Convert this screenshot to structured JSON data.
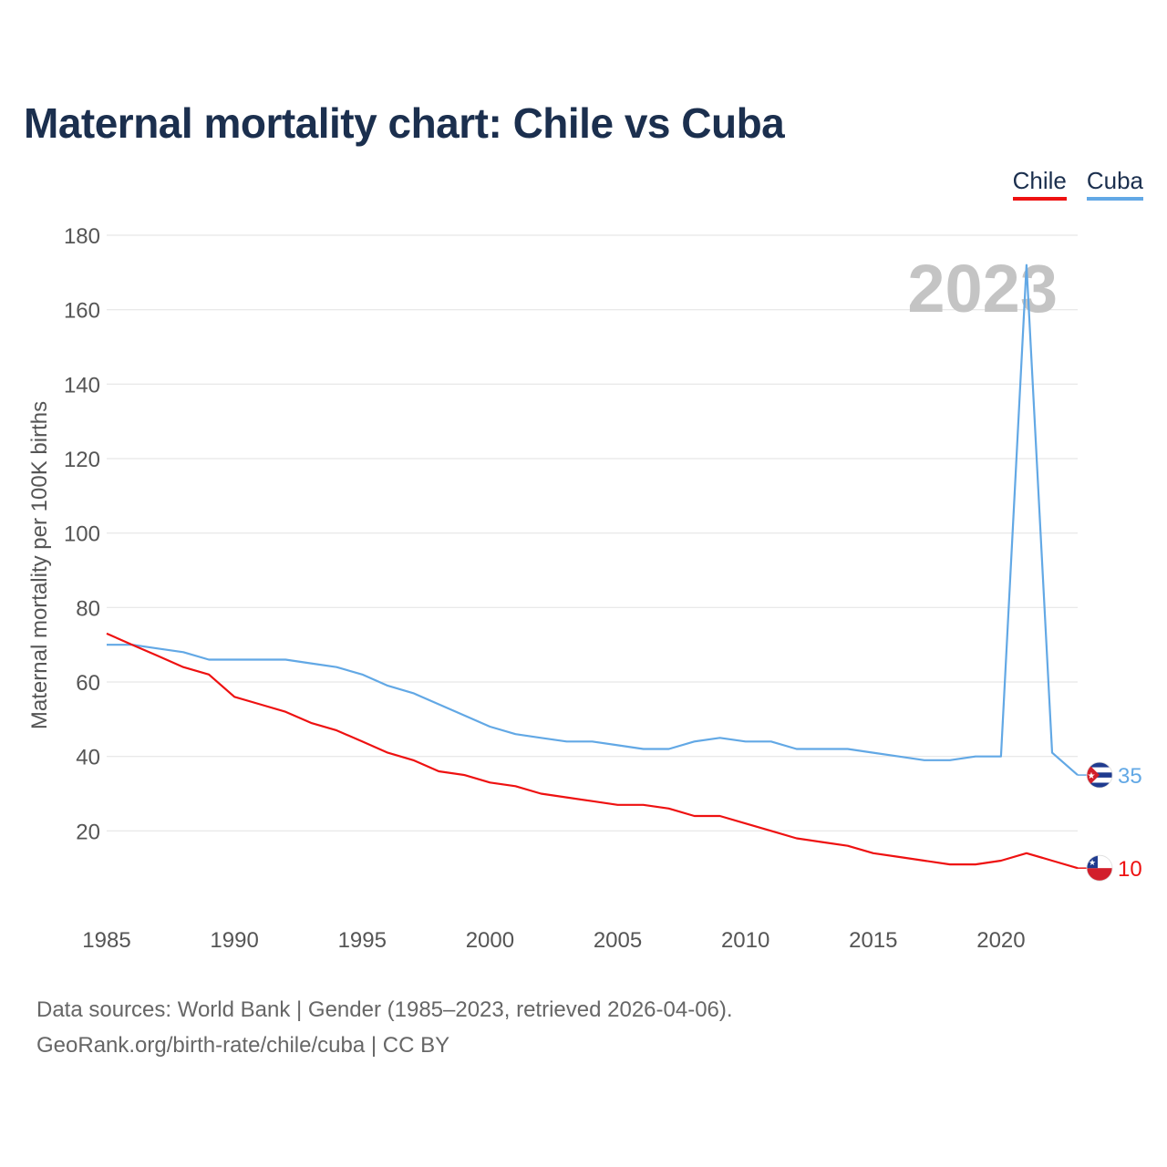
{
  "title": "Maternal mortality chart: Chile vs Cuba",
  "colors": {
    "chile": "#ee1111",
    "cuba": "#62a8e5",
    "grid": "#e6e6e6",
    "axis_text": "#555555",
    "year_watermark": "#c4c4c4"
  },
  "chart_data": {
    "type": "line",
    "title": "Maternal mortality chart: Chile vs Cuba",
    "ylabel": "Maternal mortality per 100K births",
    "xlabel": "",
    "xlim": [
      1985,
      2023
    ],
    "ylim": [
      0,
      180
    ],
    "x_ticks": [
      1985,
      1990,
      1995,
      2000,
      2005,
      2010,
      2015,
      2020
    ],
    "y_ticks": [
      20,
      40,
      60,
      80,
      100,
      120,
      140,
      160,
      180
    ],
    "watermark_year": "2023",
    "legend_position": "top-right",
    "x": [
      1985,
      1986,
      1987,
      1988,
      1989,
      1990,
      1991,
      1992,
      1993,
      1994,
      1995,
      1996,
      1997,
      1998,
      1999,
      2000,
      2001,
      2002,
      2003,
      2004,
      2005,
      2006,
      2007,
      2008,
      2009,
      2010,
      2011,
      2012,
      2013,
      2014,
      2015,
      2016,
      2017,
      2018,
      2019,
      2020,
      2021,
      2022,
      2023
    ],
    "series": [
      {
        "name": "Chile",
        "key": "chile",
        "end_label": "10",
        "values": [
          73,
          70,
          67,
          64,
          62,
          56,
          54,
          52,
          49,
          47,
          44,
          41,
          39,
          36,
          35,
          33,
          32,
          30,
          29,
          28,
          27,
          27,
          26,
          24,
          24,
          22,
          20,
          18,
          17,
          16,
          14,
          13,
          12,
          11,
          11,
          12,
          14,
          12,
          10
        ]
      },
      {
        "name": "Cuba",
        "key": "cuba",
        "end_label": "35",
        "values": [
          70,
          70,
          69,
          68,
          66,
          66,
          66,
          66,
          65,
          64,
          62,
          59,
          57,
          54,
          51,
          48,
          46,
          45,
          44,
          44,
          43,
          42,
          42,
          44,
          45,
          44,
          44,
          42,
          42,
          42,
          41,
          40,
          39,
          39,
          40,
          40,
          172,
          41,
          35
        ]
      }
    ]
  },
  "source": {
    "line1": "Data sources: World Bank | Gender (1985–2023, retrieved 2026-04-06).",
    "line2": "GeoRank.org/birth-rate/chile/cuba | CC BY"
  }
}
